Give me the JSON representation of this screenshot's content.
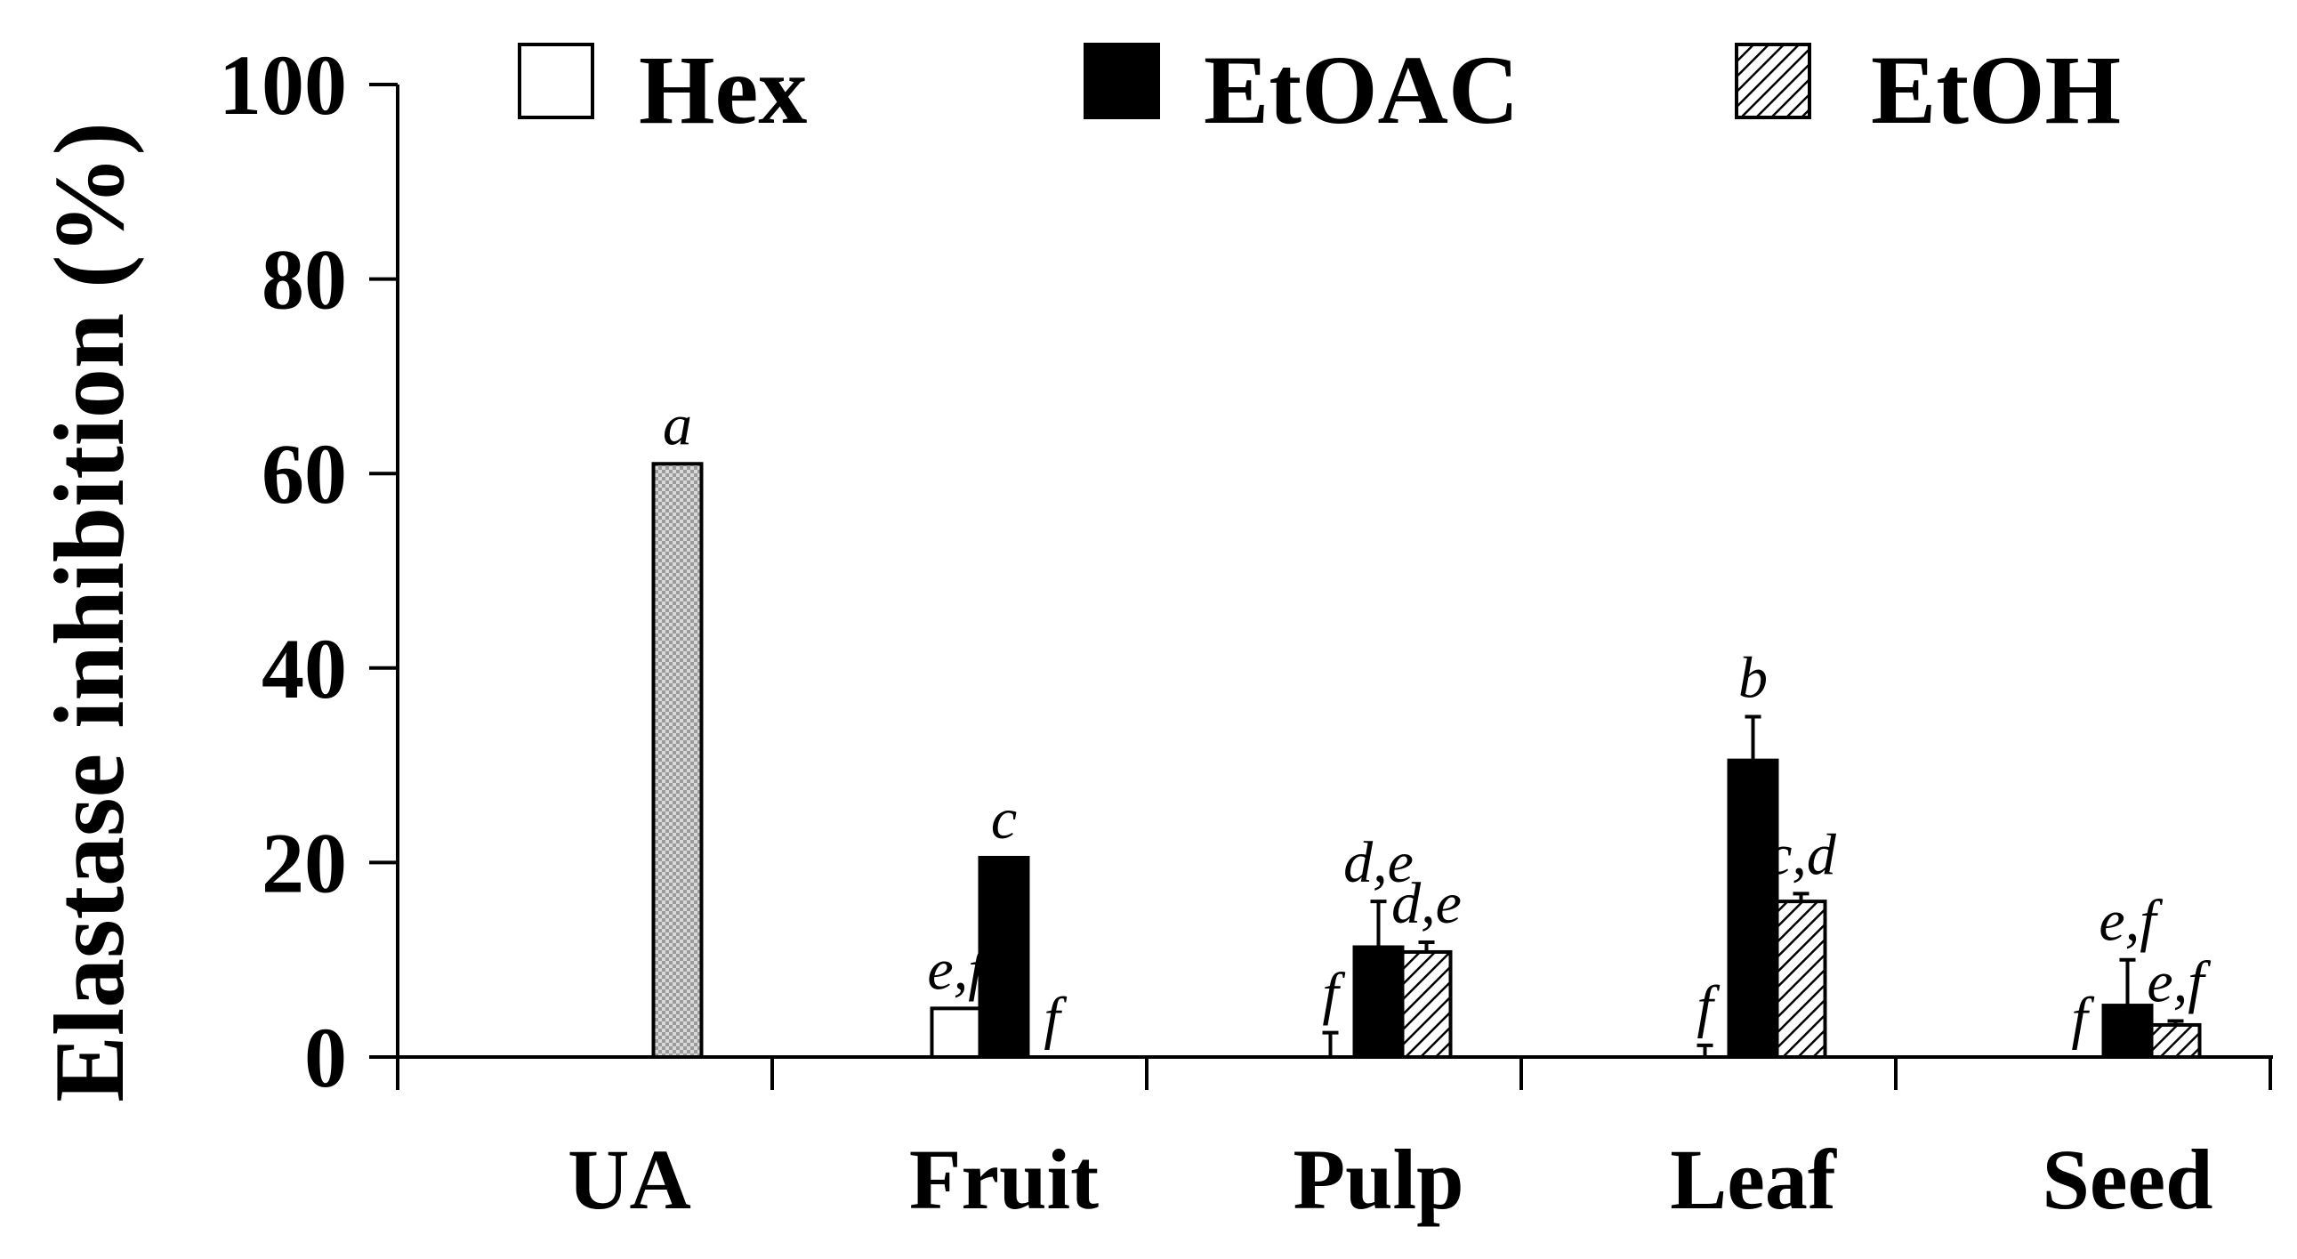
{
  "chart_data": {
    "type": "bar",
    "ylabel": "Elastase inhibition (%)",
    "ylim": [
      0,
      100
    ],
    "yticks": [
      0,
      20,
      40,
      60,
      80,
      100
    ],
    "grid": false,
    "legend_position": "top",
    "categories": [
      "UA",
      "Fruit",
      "Pulp",
      "Leaf",
      "Seed"
    ],
    "series": [
      {
        "name": "Hex",
        "style": "open",
        "color": "#ffffff",
        "values": [
          null,
          5,
          0,
          0,
          0
        ],
        "errors": [
          null,
          0,
          2.5,
          1.2,
          0
        ],
        "labels": [
          "",
          "e,f",
          "f",
          "f",
          "f"
        ]
      },
      {
        "name": "EtOAC",
        "style": "solid",
        "color": "#000000",
        "values": [
          null,
          20.5,
          11.3,
          30.5,
          5.3
        ],
        "errors": [
          null,
          0,
          4.7,
          4.5,
          4.7
        ],
        "labels": [
          "",
          "c",
          "d,e",
          "b",
          "e,f"
        ]
      },
      {
        "name": "EtOH",
        "style": "hatched",
        "color": "#000000",
        "values": [
          61,
          0,
          10.8,
          16,
          3.3
        ],
        "errors": [
          0,
          0,
          1,
          0.8,
          0.4
        ],
        "labels": [
          "a",
          "f",
          "d,e",
          "c,d",
          "e,f"
        ]
      }
    ]
  }
}
